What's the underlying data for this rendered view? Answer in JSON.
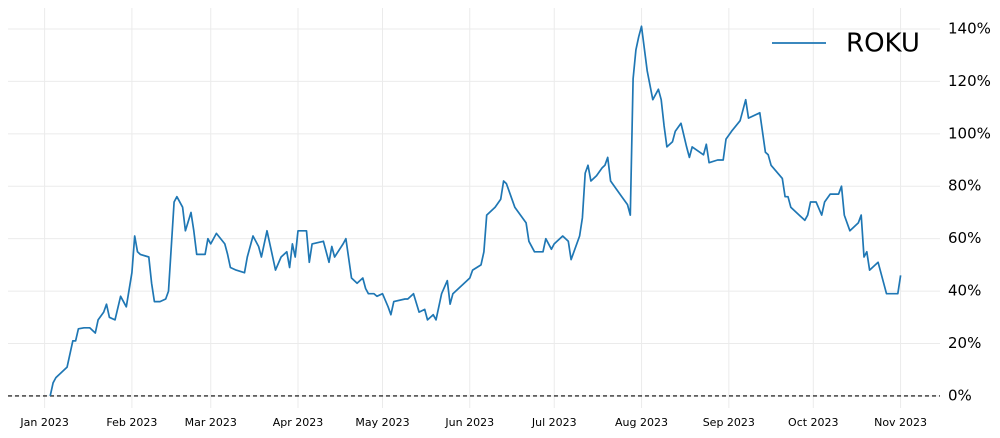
{
  "chart_data": {
    "type": "line",
    "x": [
      2,
      3,
      4,
      6,
      8,
      10,
      11,
      12,
      14,
      16,
      18,
      19,
      21,
      22,
      23,
      25,
      27,
      29,
      31,
      32,
      33,
      34,
      37,
      38,
      39,
      41,
      43,
      44,
      46,
      47,
      49,
      50,
      52,
      53,
      54,
      57,
      58,
      59,
      61,
      64,
      65,
      66,
      68,
      71,
      72,
      74,
      76,
      77,
      79,
      81,
      82,
      84,
      86,
      87,
      88,
      89,
      90,
      92,
      93,
      94,
      95,
      99,
      101,
      102,
      103,
      106,
      107,
      109,
      111,
      113,
      114,
      115,
      117,
      118,
      120,
      122,
      123,
      124,
      128,
      129,
      131,
      133,
      135,
      136,
      138,
      139,
      141,
      143,
      144,
      145,
      150,
      151,
      152,
      155,
      156,
      157,
      160,
      162,
      163,
      164,
      166,
      167,
      171,
      172,
      174,
      177,
      178,
      180,
      181,
      184,
      186,
      187,
      190,
      191,
      192,
      193,
      194,
      196,
      198,
      199,
      200,
      201,
      203,
      205,
      207,
      208,
      209,
      210,
      211,
      212,
      214,
      216,
      218,
      219,
      220,
      221,
      223,
      224,
      226,
      228,
      229,
      230,
      234,
      235,
      236,
      239,
      241,
      242,
      244,
      247,
      249,
      250,
      254,
      256,
      257,
      258,
      262,
      263,
      264,
      265,
      268,
      270,
      271,
      272,
      274,
      276,
      277,
      279,
      282,
      283,
      284,
      286,
      289,
      290,
      291,
      292,
      293,
      296,
      299,
      303,
      304
    ],
    "series": [
      {
        "name": "ROKU",
        "color": "#1f77b4",
        "values": [
          0,
          5,
          7,
          9,
          11,
          21,
          21,
          25.6,
          26,
          26,
          24,
          29,
          32,
          35,
          30,
          29,
          38,
          34,
          47,
          61,
          55,
          54,
          53,
          43,
          36,
          36,
          37,
          40,
          74,
          76,
          72,
          63,
          70,
          63,
          54,
          54,
          60,
          58,
          62,
          58,
          54,
          49,
          48,
          47,
          53,
          61,
          57,
          53,
          63,
          53,
          48,
          53,
          55,
          49,
          58,
          53,
          63,
          63,
          63,
          51,
          58,
          59,
          51,
          57,
          53,
          58,
          60,
          45,
          43,
          45,
          41,
          39,
          39,
          38,
          39,
          34,
          31,
          36,
          37,
          37,
          39,
          32,
          33,
          29,
          31,
          29,
          39,
          44,
          35,
          39,
          44,
          45,
          48,
          50,
          55,
          69,
          72,
          75,
          82,
          81,
          75,
          72,
          66,
          59,
          55,
          55,
          60,
          56,
          58,
          61,
          59,
          52,
          61,
          68,
          85,
          88,
          82,
          84,
          87,
          88,
          91,
          82,
          79,
          76,
          73,
          69,
          121,
          132,
          137,
          141,
          124,
          113,
          117,
          113,
          103,
          95,
          97,
          101,
          104,
          95,
          91,
          95,
          92,
          96,
          89,
          90,
          90,
          98,
          101,
          105,
          113,
          106,
          108,
          93,
          92,
          88,
          83,
          76,
          76,
          72,
          69,
          67,
          69,
          74,
          74,
          69,
          74,
          77,
          77,
          80,
          69,
          63,
          66,
          69,
          53,
          55,
          48,
          51,
          39,
          39,
          46
        ]
      }
    ],
    "xlim": [
      -13,
      318
    ],
    "xticks": [
      {
        "value": 0,
        "label": "Jan 2023"
      },
      {
        "value": 31,
        "label": "Feb 2023"
      },
      {
        "value": 59,
        "label": "Mar 2023"
      },
      {
        "value": 90,
        "label": "Apr 2023"
      },
      {
        "value": 120,
        "label": "May 2023"
      },
      {
        "value": 151,
        "label": "Jun 2023"
      },
      {
        "value": 181,
        "label": "Jul 2023"
      },
      {
        "value": 212,
        "label": "Aug 2023"
      },
      {
        "value": 243,
        "label": "Sep 2023"
      },
      {
        "value": 273,
        "label": "Oct 2023"
      },
      {
        "value": 304,
        "label": "Nov 2023"
      }
    ],
    "ylim": [
      -4.6,
      148
    ],
    "yticks": [
      {
        "value": 0,
        "label": "0%"
      },
      {
        "value": 20,
        "label": "20%"
      },
      {
        "value": 40,
        "label": "40%"
      },
      {
        "value": 60,
        "label": "60%"
      },
      {
        "value": 80,
        "label": "80%"
      },
      {
        "value": 100,
        "label": "100%"
      },
      {
        "value": 120,
        "label": "120%"
      },
      {
        "value": 140,
        "label": "140%"
      }
    ],
    "grid": true,
    "zero_line": true,
    "legend": "upper right"
  }
}
